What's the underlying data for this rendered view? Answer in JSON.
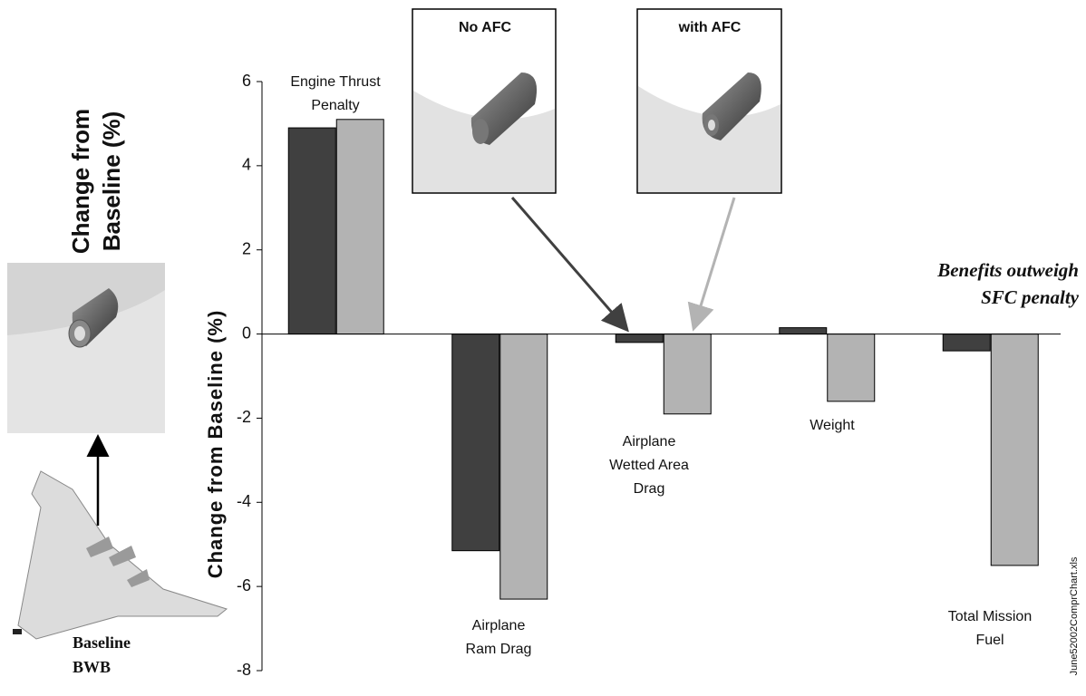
{
  "chart_data": {
    "type": "bar",
    "y_label": "Change from Baseline (%)",
    "side_label": "Change from\nBaseline (%)",
    "annotation": "Benefits outweigh\nSFC penalty",
    "baseline_label": "Baseline\nBWB",
    "file_label": "June52002ComprChart.xls",
    "categories": [
      "Engine Thrust\nPenalty",
      "Airplane\nRam Drag",
      "Airplane\nWetted Area\nDrag",
      "Weight",
      "Total Mission\nFuel"
    ],
    "series": [
      {
        "name": "No AFC",
        "color": "#404040",
        "values": [
          4.9,
          -5.15,
          -0.2,
          0.15,
          -0.4
        ]
      },
      {
        "name": "with AFC",
        "color": "#b3b3b3",
        "values": [
          5.1,
          -6.3,
          -1.9,
          -1.6,
          -5.5
        ]
      }
    ],
    "ylim": [
      -8,
      6
    ],
    "yticks": [
      -8,
      -6,
      -4,
      -2,
      0,
      2,
      4,
      6
    ]
  }
}
